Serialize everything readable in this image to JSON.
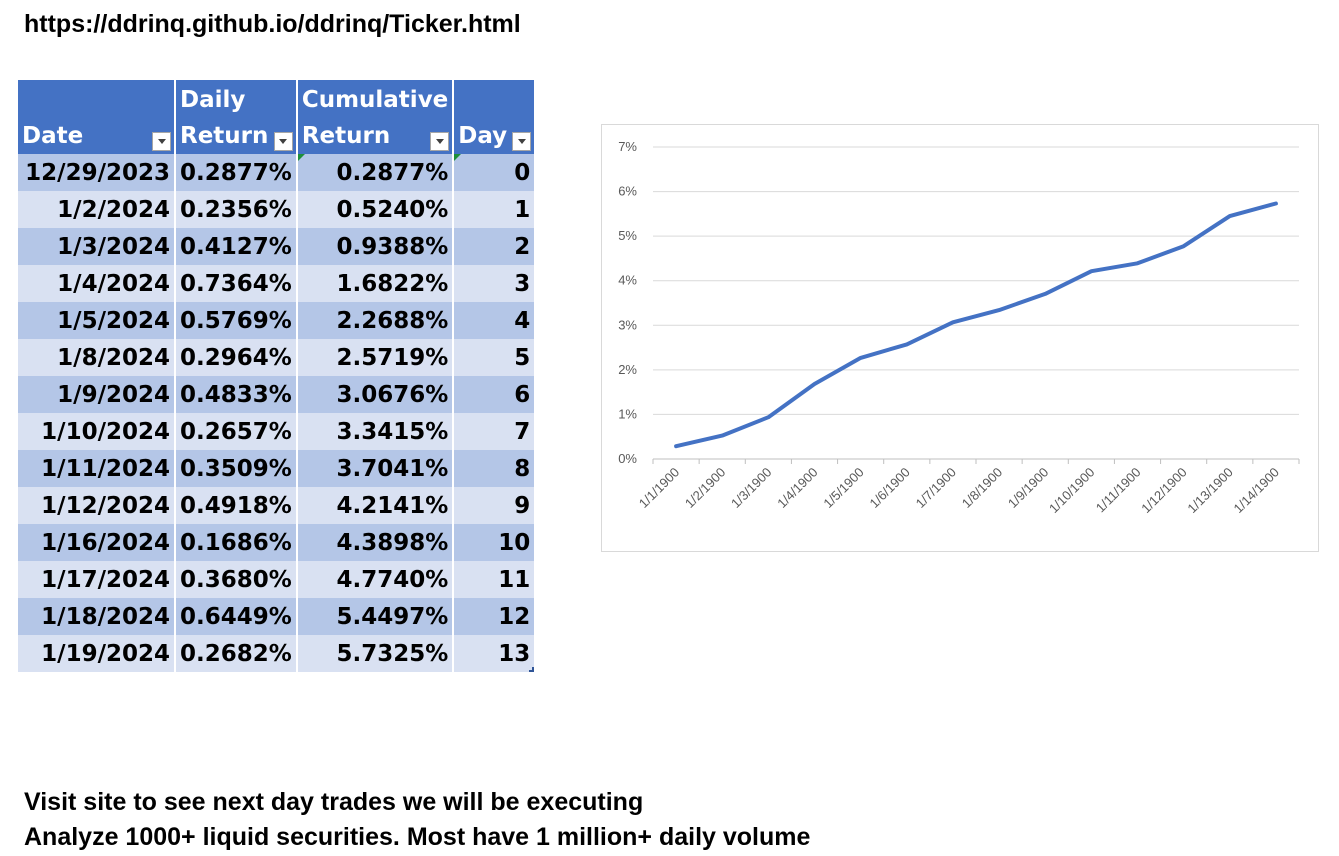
{
  "header": {
    "url": "https://ddrinq.github.io/ddrinq/Ticker.html"
  },
  "table": {
    "columns": [
      {
        "line1": "",
        "line2": "Date"
      },
      {
        "line1": "Daily",
        "line2": "Return"
      },
      {
        "line1": "Cumulative",
        "line2": "Return"
      },
      {
        "line1": "",
        "line2": "Day"
      }
    ],
    "rows": [
      [
        "12/29/2023",
        "0.2877%",
        "0.2877%",
        "0"
      ],
      [
        "1/2/2024",
        "0.2356%",
        "0.5240%",
        "1"
      ],
      [
        "1/3/2024",
        "0.4127%",
        "0.9388%",
        "2"
      ],
      [
        "1/4/2024",
        "0.7364%",
        "1.6822%",
        "3"
      ],
      [
        "1/5/2024",
        "0.5769%",
        "2.2688%",
        "4"
      ],
      [
        "1/8/2024",
        "0.2964%",
        "2.5719%",
        "5"
      ],
      [
        "1/9/2024",
        "0.4833%",
        "3.0676%",
        "6"
      ],
      [
        "1/10/2024",
        "0.2657%",
        "3.3415%",
        "7"
      ],
      [
        "1/11/2024",
        "0.3509%",
        "3.7041%",
        "8"
      ],
      [
        "1/12/2024",
        "0.4918%",
        "4.2141%",
        "9"
      ],
      [
        "1/16/2024",
        "0.1686%",
        "4.3898%",
        "10"
      ],
      [
        "1/17/2024",
        "0.3680%",
        "4.7740%",
        "11"
      ],
      [
        "1/18/2024",
        "0.6449%",
        "5.4497%",
        "12"
      ],
      [
        "1/19/2024",
        "0.2682%",
        "5.7325%",
        "13"
      ]
    ]
  },
  "chart_data": {
    "type": "line",
    "title": "",
    "xlabel": "",
    "ylabel": "",
    "x": [
      "1/1/1900",
      "1/2/1900",
      "1/3/1900",
      "1/4/1900",
      "1/5/1900",
      "1/6/1900",
      "1/7/1900",
      "1/8/1900",
      "1/9/1900",
      "1/10/1900",
      "1/11/1900",
      "1/12/1900",
      "1/13/1900",
      "1/14/1900"
    ],
    "series": [
      {
        "values": [
          0.2877,
          0.524,
          0.9388,
          1.6822,
          2.2688,
          2.5719,
          3.0676,
          3.3415,
          3.7041,
          4.2141,
          4.3898,
          4.774,
          5.4497,
          5.7325
        ],
        "color": "#4472c4"
      }
    ],
    "ylim": [
      0,
      7
    ],
    "yticks": [
      "0%",
      "1%",
      "2%",
      "3%",
      "4%",
      "5%",
      "6%",
      "7%"
    ],
    "grid": true,
    "legend": "none"
  },
  "footer": {
    "line1": "Visit site to see next day trades we will be executing",
    "line2": "Analyze 1000+ liquid securities.  Most have 1 million+ daily volume"
  },
  "colors": {
    "header_bg": "#4472c4",
    "row_dark": "#b4c6e7",
    "row_light": "#d9e1f2",
    "line": "#4472c4",
    "gridline": "#d9d9d9"
  }
}
